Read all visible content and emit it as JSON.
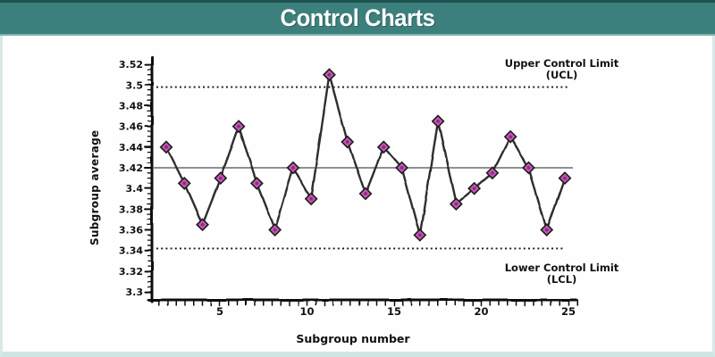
{
  "header": {
    "title": "Control Charts",
    "bg_color": "#3b807c",
    "text_color": "#ffffff"
  },
  "chart_data": {
    "type": "line",
    "xlabel": "Subgroup number",
    "ylabel": "Subgroup average",
    "subgroups": [
      2,
      3,
      4,
      5,
      6,
      7,
      8,
      9,
      10,
      11,
      12,
      13,
      14,
      15,
      16,
      17,
      18,
      19,
      20,
      21,
      22,
      23,
      24
    ],
    "values": [
      3.44,
      3.405,
      3.365,
      3.41,
      3.46,
      3.405,
      3.36,
      3.42,
      3.39,
      3.51,
      3.445,
      3.395,
      3.44,
      3.42,
      3.355,
      3.465,
      3.385,
      3.4,
      3.415,
      3.45,
      3.42,
      3.36,
      3.41
    ],
    "center_line": 3.42,
    "ucl": 3.498,
    "lcl": 3.342,
    "xlim": [
      1,
      25.5
    ],
    "ylim": [
      3.3,
      3.52
    ],
    "grid": false,
    "marker": "diamond-with-dot",
    "x_ticks": [
      {
        "label": "5",
        "value": 5
      },
      {
        "label": "10",
        "value": 10
      },
      {
        "label": "15",
        "value": 15
      },
      {
        "label": "20",
        "value": 20
      },
      {
        "label": "25",
        "value": 25
      }
    ],
    "y_ticks": [
      {
        "label": "3.3",
        "value": 3.3
      },
      {
        "label": "3.32",
        "value": 3.32
      },
      {
        "label": "3.34",
        "value": 3.34
      },
      {
        "label": "3.36",
        "value": 3.36
      },
      {
        "label": "3.38",
        "value": 3.38
      },
      {
        "label": "3.4",
        "value": 3.4
      },
      {
        "label": "3.42",
        "value": 3.42
      },
      {
        "label": "3.44",
        "value": 3.44
      },
      {
        "label": "3.46",
        "value": 3.46
      },
      {
        "label": "3.48",
        "value": 3.48
      },
      {
        "label": "3.5",
        "value": 3.5
      },
      {
        "label": "3.52",
        "value": 3.52
      }
    ],
    "annotations": {
      "ucl_line1": "Upper Control Limit",
      "ucl_line2": "(UCL)",
      "lcl_line1": "Lower Control Limit",
      "lcl_line2": "(LCL)"
    },
    "colors": {
      "marker_fill": "#c558b5",
      "marker_dot": "#8c2a85",
      "marker_edge": "#1c1c1c",
      "series_line": "#2d2d2d",
      "center_line": "#808080",
      "limit_line": "#1a1a1a",
      "axis": "#111111",
      "text": "#111111"
    }
  }
}
